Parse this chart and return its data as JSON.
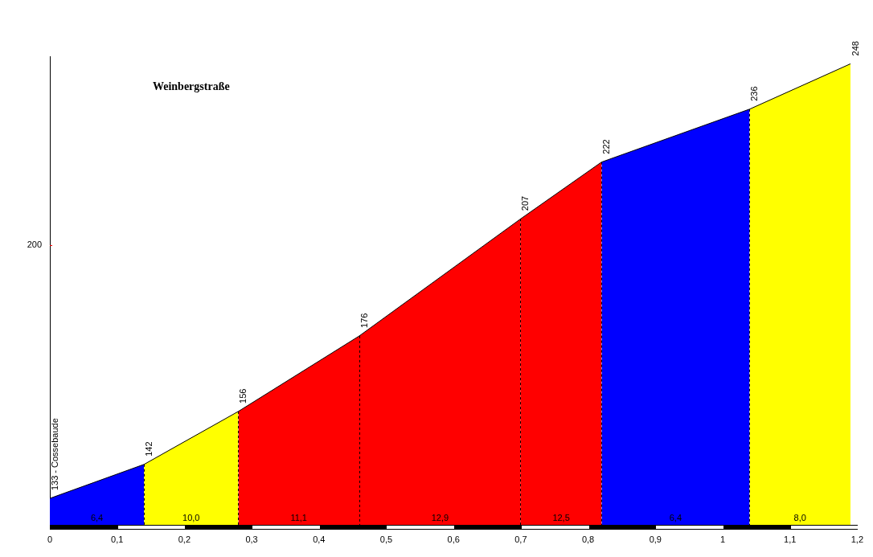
{
  "chart_data": {
    "type": "area",
    "title": "Weinbergstraße",
    "xlim": [
      0,
      1.2
    ],
    "xticks": [
      0,
      {
        "value": 0.1,
        "label": "0,1"
      },
      {
        "value": 0.2,
        "label": "0,2"
      },
      {
        "value": 0.3,
        "label": "0,3"
      },
      {
        "value": 0.4,
        "label": "0,4"
      },
      {
        "value": 0.5,
        "label": "0,5"
      },
      {
        "value": 0.6,
        "label": "0,6"
      },
      {
        "value": 0.7,
        "label": "0,7"
      },
      {
        "value": 0.8,
        "label": "0,8"
      },
      {
        "value": 0.9,
        "label": "0,9"
      },
      1,
      {
        "value": 1.1,
        "label": "1,1"
      },
      {
        "value": 1.2,
        "label": "1,2"
      }
    ],
    "ylim": [
      126,
      250
    ],
    "series": [
      {
        "color": "#0000ff",
        "x": [
          0,
          0.14
        ],
        "values": [
          133,
          142
        ],
        "value_labels": [
          "133 - Cossebaude",
          "142"
        ]
      },
      {
        "color": "#ffff00",
        "x": [
          0.14,
          0.28
        ],
        "values": [
          142,
          156
        ],
        "value_labels": [
          null,
          "156"
        ]
      },
      {
        "color": "#ff0000",
        "x": [
          0.28,
          0.46
        ],
        "values": [
          156,
          176
        ],
        "value_labels": [
          null,
          "176"
        ]
      },
      {
        "color": "#ff0000",
        "x": [
          0.46,
          0.7
        ],
        "values": [
          176,
          207
        ],
        "value_labels": [
          null,
          "207"
        ]
      },
      {
        "color": "#ff0000",
        "x": [
          0.7,
          0.82
        ],
        "values": [
          207,
          222
        ],
        "value_labels": [
          null,
          "222"
        ]
      },
      {
        "color": "#0000ff",
        "x": [
          0.82,
          1.04
        ],
        "values": [
          222,
          236
        ],
        "value_labels": [
          null,
          "236"
        ]
      },
      {
        "color": "#ffff00",
        "x": [
          1.04,
          1.19
        ],
        "values": [
          236,
          248
        ],
        "value_labels": [
          null,
          "248"
        ]
      }
    ],
    "ref_lines": [
      {
        "axis": "x",
        "value": 0.14,
        "color": "#000000",
        "line_style": "dashed"
      },
      {
        "axis": "x",
        "value": 0.28,
        "color": "#000000",
        "line_style": "dashed"
      },
      {
        "axis": "x",
        "value": 0.46,
        "color": "#000000",
        "line_style": "dashed"
      },
      {
        "axis": "x",
        "value": 0.7,
        "color": "#000000",
        "line_style": "dashed"
      },
      {
        "axis": "x",
        "value": 0.82,
        "color": "#000000",
        "line_style": "dashed"
      },
      {
        "axis": "x",
        "value": 1.04,
        "color": "#000000",
        "line_style": "dashed"
      }
    ],
    "annotations": [
      "6,4",
      "10,0",
      "11,1",
      "12,9",
      "12,5",
      "6,4",
      "8,0",
      "200"
    ]
  }
}
